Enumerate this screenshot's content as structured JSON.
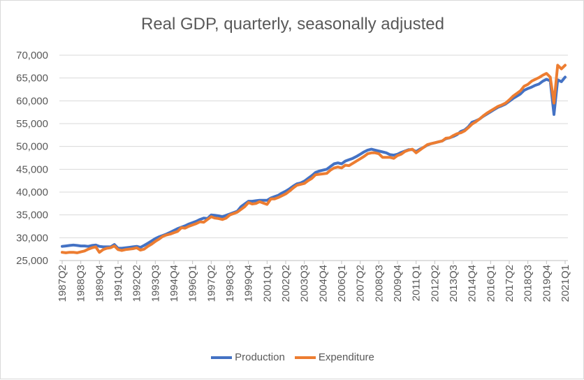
{
  "chart_data": {
    "type": "line",
    "title": "Real GDP, quarterly, seasonally adjusted",
    "ylim": [
      25000,
      70000
    ],
    "yticks": [
      25000,
      30000,
      35000,
      40000,
      45000,
      50000,
      55000,
      60000,
      65000,
      70000
    ],
    "ytick_labels": [
      "25,000",
      "30,000",
      "35,000",
      "40,000",
      "45,000",
      "50,000",
      "55,000",
      "60,000",
      "65,000",
      "70,000"
    ],
    "grid": "horizontal",
    "legend": "bottom",
    "xtick_labels": [
      "1987Q2",
      "1988Q3",
      "1989Q4",
      "1991Q1",
      "1992Q2",
      "1993Q3",
      "1994Q4",
      "1996Q1",
      "1997Q2",
      "1998Q3",
      "1999Q4",
      "2001Q1",
      "2002Q2",
      "2003Q3",
      "2004Q4",
      "2006Q1",
      "2007Q2",
      "2008Q3",
      "2009Q4",
      "2011Q1",
      "2012Q2",
      "2013Q3",
      "2014Q4",
      "2016Q1",
      "2017Q2",
      "2018Q3",
      "2019Q4",
      "2021Q1"
    ],
    "categories": [
      "1987Q2",
      "1987Q3",
      "1987Q4",
      "1988Q1",
      "1988Q2",
      "1988Q3",
      "1988Q4",
      "1989Q1",
      "1989Q2",
      "1989Q3",
      "1989Q4",
      "1990Q1",
      "1990Q2",
      "1990Q3",
      "1990Q4",
      "1991Q1",
      "1991Q2",
      "1991Q3",
      "1991Q4",
      "1992Q1",
      "1992Q2",
      "1992Q3",
      "1992Q4",
      "1993Q1",
      "1993Q2",
      "1993Q3",
      "1993Q4",
      "1994Q1",
      "1994Q2",
      "1994Q3",
      "1994Q4",
      "1995Q1",
      "1995Q2",
      "1995Q3",
      "1995Q4",
      "1996Q1",
      "1996Q2",
      "1996Q3",
      "1996Q4",
      "1997Q1",
      "1997Q2",
      "1997Q3",
      "1997Q4",
      "1998Q1",
      "1998Q2",
      "1998Q3",
      "1998Q4",
      "1999Q1",
      "1999Q2",
      "1999Q3",
      "1999Q4",
      "2000Q1",
      "2000Q2",
      "2000Q3",
      "2000Q4",
      "2001Q1",
      "2001Q2",
      "2001Q3",
      "2001Q4",
      "2002Q1",
      "2002Q2",
      "2002Q3",
      "2002Q4",
      "2003Q1",
      "2003Q2",
      "2003Q3",
      "2003Q4",
      "2004Q1",
      "2004Q2",
      "2004Q3",
      "2004Q4",
      "2005Q1",
      "2005Q2",
      "2005Q3",
      "2005Q4",
      "2006Q1",
      "2006Q2",
      "2006Q3",
      "2006Q4",
      "2007Q1",
      "2007Q2",
      "2007Q3",
      "2007Q4",
      "2008Q1",
      "2008Q2",
      "2008Q3",
      "2008Q4",
      "2009Q1",
      "2009Q2",
      "2009Q3",
      "2009Q4",
      "2010Q1",
      "2010Q2",
      "2010Q3",
      "2010Q4",
      "2011Q1",
      "2011Q2",
      "2011Q3",
      "2011Q4",
      "2012Q1",
      "2012Q2",
      "2012Q3",
      "2012Q4",
      "2013Q1",
      "2013Q2",
      "2013Q3",
      "2013Q4",
      "2014Q1",
      "2014Q2",
      "2014Q3",
      "2014Q4",
      "2015Q1",
      "2015Q2",
      "2015Q3",
      "2015Q4",
      "2016Q1",
      "2016Q2",
      "2016Q3",
      "2016Q4",
      "2017Q1",
      "2017Q2",
      "2017Q3",
      "2017Q4",
      "2018Q1",
      "2018Q2",
      "2018Q3",
      "2018Q4",
      "2019Q1",
      "2019Q2",
      "2019Q3",
      "2019Q4",
      "2020Q1",
      "2020Q2",
      "2020Q3",
      "2020Q4",
      "2021Q1"
    ],
    "series": [
      {
        "name": "Production",
        "color": "#4472C4",
        "values": [
          28100,
          28200,
          28300,
          28400,
          28300,
          28200,
          28200,
          28100,
          28300,
          28400,
          28100,
          28000,
          28000,
          28000,
          28500,
          27700,
          27700,
          27800,
          27900,
          28000,
          28100,
          27900,
          28300,
          28800,
          29300,
          29800,
          30200,
          30500,
          30800,
          31200,
          31600,
          32000,
          32300,
          32600,
          33000,
          33300,
          33600,
          34000,
          34300,
          34200,
          35000,
          34900,
          34800,
          34600,
          34900,
          35200,
          35500,
          35800,
          36800,
          37400,
          38000,
          38000,
          38100,
          38200,
          38200,
          38200,
          38700,
          39000,
          39300,
          39800,
          40200,
          40700,
          41300,
          41800,
          42000,
          42400,
          43000,
          43600,
          44300,
          44600,
          44800,
          45000,
          45600,
          46200,
          46400,
          46200,
          46800,
          47100,
          47400,
          47800,
          48300,
          48800,
          49200,
          49400,
          49200,
          49000,
          48800,
          48600,
          48200,
          48100,
          48300,
          48700,
          49000,
          49300,
          49300,
          48900,
          49400,
          49800,
          50300,
          50600,
          50800,
          51000,
          51200,
          51700,
          51900,
          52200,
          52600,
          53300,
          53600,
          54300,
          55300,
          55600,
          56000,
          56600,
          57100,
          57600,
          58100,
          58600,
          58900,
          59300,
          59900,
          60500,
          61000,
          61500,
          62300,
          62700,
          63000,
          63400,
          63700,
          64300,
          64700,
          64400,
          57000,
          64600,
          64200,
          65200
        ]
      },
      {
        "name": "Expenditure",
        "color": "#ED7D31",
        "values": [
          26800,
          26700,
          26800,
          26800,
          26700,
          26900,
          27100,
          27500,
          27800,
          28000,
          26800,
          27400,
          27700,
          27800,
          28200,
          27400,
          27200,
          27400,
          27500,
          27600,
          27800,
          27300,
          27500,
          28100,
          28600,
          29200,
          29700,
          30300,
          30600,
          30800,
          31100,
          31400,
          32200,
          32100,
          32500,
          32800,
          33100,
          33500,
          33400,
          34000,
          34600,
          34300,
          34200,
          34000,
          34300,
          35000,
          35300,
          35600,
          36200,
          36800,
          37700,
          37400,
          37500,
          37900,
          37600,
          37300,
          38500,
          38500,
          38800,
          39200,
          39600,
          40200,
          40900,
          41500,
          41700,
          41900,
          42500,
          43000,
          43800,
          43900,
          44000,
          44100,
          44800,
          45300,
          45500,
          45300,
          45900,
          45800,
          46300,
          46800,
          47300,
          47800,
          48400,
          48600,
          48600,
          48400,
          47600,
          47600,
          47600,
          47400,
          48000,
          48300,
          48900,
          49200,
          49400,
          48600,
          49200,
          49800,
          50400,
          50600,
          50800,
          51000,
          51200,
          51800,
          51900,
          52400,
          52800,
          53000,
          53400,
          54100,
          54900,
          55400,
          56000,
          56700,
          57300,
          57800,
          58300,
          58800,
          59100,
          59500,
          60200,
          61000,
          61600,
          62200,
          63200,
          63600,
          64300,
          64700,
          65100,
          65600,
          66000,
          65200,
          59500,
          67800,
          67000,
          67800
        ]
      }
    ]
  }
}
